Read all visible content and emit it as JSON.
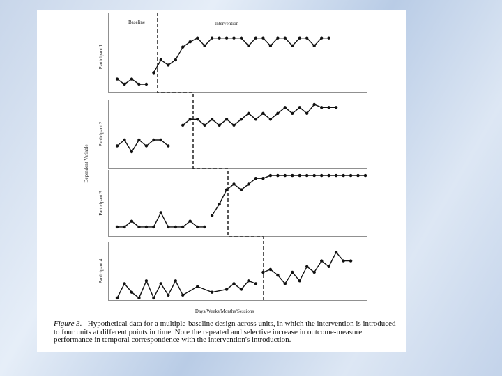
{
  "chart_data": {
    "type": "line",
    "title": "Multiple-baseline design across units",
    "phase_labels": {
      "baseline": "Baseline",
      "intervention": "Intervention"
    },
    "xlabel": "Days/Weeks/Months/Sessions",
    "ylabel": "Dependent Variable",
    "ylim": [
      0,
      10
    ],
    "series": [
      {
        "name": "Participant 1",
        "baseline": [
          [
            1,
            2.0
          ],
          [
            2,
            1.2
          ],
          [
            3,
            2.0
          ],
          [
            4,
            1.2
          ],
          [
            5,
            1.2
          ]
        ],
        "intervention": [
          [
            6,
            3.0
          ],
          [
            7,
            5.0
          ],
          [
            8,
            4.2
          ],
          [
            9,
            5.0
          ],
          [
            10,
            7.0
          ],
          [
            11,
            7.8
          ],
          [
            12,
            8.4
          ],
          [
            13,
            7.2
          ],
          [
            14,
            8.4
          ],
          [
            15,
            8.4
          ],
          [
            16,
            8.4
          ],
          [
            17,
            8.4
          ],
          [
            18,
            8.4
          ],
          [
            19,
            7.2
          ],
          [
            20,
            8.4
          ],
          [
            21,
            8.4
          ],
          [
            22,
            7.2
          ],
          [
            23,
            8.4
          ],
          [
            24,
            8.4
          ],
          [
            25,
            7.2
          ],
          [
            26,
            8.4
          ],
          [
            27,
            8.4
          ],
          [
            28,
            7.2
          ],
          [
            29,
            8.4
          ],
          [
            30,
            8.4
          ]
        ]
      },
      {
        "name": "Participant 2",
        "baseline": [
          [
            1,
            3.0
          ],
          [
            2,
            4.0
          ],
          [
            3,
            2.0
          ],
          [
            4,
            4.0
          ],
          [
            5,
            3.0
          ],
          [
            6,
            4.0
          ],
          [
            7,
            4.0
          ],
          [
            8,
            3.0
          ]
        ],
        "intervention": [
          [
            10,
            6.5
          ],
          [
            11,
            7.5
          ],
          [
            12,
            7.5
          ],
          [
            13,
            6.5
          ],
          [
            14,
            7.5
          ],
          [
            15,
            6.5
          ],
          [
            16,
            7.5
          ],
          [
            17,
            6.5
          ],
          [
            18,
            7.5
          ],
          [
            19,
            8.5
          ],
          [
            20,
            7.5
          ],
          [
            21,
            8.5
          ],
          [
            22,
            7.5
          ],
          [
            23,
            8.5
          ],
          [
            24,
            9.5
          ],
          [
            25,
            8.5
          ],
          [
            26,
            9.5
          ],
          [
            27,
            8.5
          ],
          [
            28,
            10.0
          ],
          [
            29,
            9.5
          ],
          [
            30,
            9.5
          ],
          [
            31,
            9.5
          ]
        ]
      },
      {
        "name": "Participant 3",
        "baseline": [
          [
            1,
            0.5
          ],
          [
            2,
            0.5
          ],
          [
            3,
            1.5
          ],
          [
            4,
            0.5
          ],
          [
            5,
            0.5
          ],
          [
            6,
            0.5
          ],
          [
            7,
            3.0
          ],
          [
            8,
            0.5
          ],
          [
            9,
            0.5
          ],
          [
            10,
            0.5
          ],
          [
            11,
            1.5
          ],
          [
            12,
            0.5
          ],
          [
            13,
            0.5
          ]
        ],
        "intervention": [
          [
            14,
            2.5
          ],
          [
            15,
            4.5
          ],
          [
            16,
            7.0
          ],
          [
            17,
            8.0
          ],
          [
            18,
            7.0
          ],
          [
            19,
            8.0
          ],
          [
            20,
            9.0
          ],
          [
            21,
            9.0
          ],
          [
            22,
            9.5
          ],
          [
            23,
            9.5
          ],
          [
            24,
            9.5
          ],
          [
            25,
            9.5
          ],
          [
            26,
            9.5
          ],
          [
            27,
            9.5
          ],
          [
            28,
            9.5
          ],
          [
            29,
            9.5
          ],
          [
            30,
            9.5
          ],
          [
            31,
            9.5
          ],
          [
            32,
            9.5
          ],
          [
            33,
            9.5
          ],
          [
            34,
            9.5
          ],
          [
            35,
            9.5
          ]
        ]
      },
      {
        "name": "Participant 4",
        "baseline": [
          [
            1,
            0.5
          ],
          [
            2,
            3.0
          ],
          [
            3,
            1.5
          ],
          [
            4,
            0.5
          ],
          [
            5,
            3.5
          ],
          [
            6,
            0.5
          ],
          [
            7,
            3.0
          ],
          [
            8,
            1.0
          ],
          [
            9,
            3.5
          ],
          [
            10,
            1.0
          ],
          [
            12,
            2.5
          ],
          [
            14,
            1.5
          ],
          [
            16,
            2.0
          ],
          [
            17,
            3.0
          ],
          [
            18,
            2.0
          ],
          [
            19,
            3.5
          ],
          [
            20,
            3.0
          ]
        ],
        "intervention": [
          [
            21,
            5.0
          ],
          [
            22,
            5.5
          ],
          [
            23,
            4.5
          ],
          [
            24,
            3.0
          ],
          [
            25,
            5.0
          ],
          [
            26,
            3.5
          ],
          [
            27,
            6.0
          ],
          [
            28,
            5.0
          ],
          [
            29,
            7.0
          ],
          [
            30,
            6.0
          ],
          [
            31,
            8.5
          ],
          [
            32,
            7.0
          ],
          [
            33,
            7.0
          ]
        ]
      }
    ]
  },
  "caption": {
    "label": "Figure 3.",
    "text": "Hypothetical data for a multiple-baseline design across units, in which the intervention is introduced to four units at different points in time. Note the repeated and selective increase in outcome-measure performance in temporal correspondence with the intervention's introduction."
  }
}
